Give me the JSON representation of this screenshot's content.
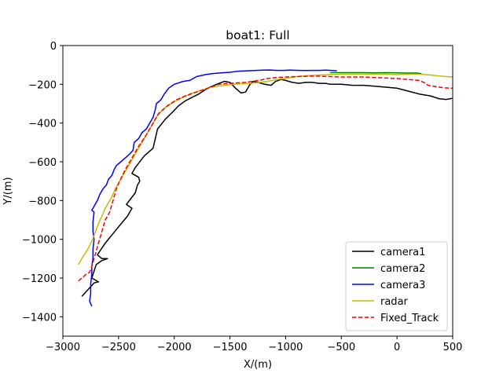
{
  "chart_data": {
    "type": "line",
    "title": "boat1: Full",
    "xlabel": "X/(m)",
    "ylabel": "Y/(m)",
    "xlim": [
      -3000,
      500
    ],
    "ylim": [
      -1500,
      0
    ],
    "xticks": [
      -3000,
      -2500,
      -2000,
      -1500,
      -1000,
      -500,
      0,
      500
    ],
    "yticks": [
      0,
      -200,
      -400,
      -600,
      -800,
      -1000,
      -1200,
      -1400
    ],
    "xtick_labels": [
      "−3000",
      "−2500",
      "−2000",
      "−1500",
      "−1000",
      "−500",
      "0",
      "500"
    ],
    "ytick_labels": [
      "0",
      "−200",
      "−400",
      "−600",
      "−800",
      "−1000",
      "−1200",
      "−1400"
    ],
    "grid": false,
    "legend_position": "lower-right",
    "series": [
      {
        "name": "camera1",
        "color": "#000000",
        "dash": "solid",
        "points": [
          [
            -2830,
            -1295
          ],
          [
            -2720,
            -1225
          ],
          [
            -2680,
            -1220
          ],
          [
            -2740,
            -1200
          ],
          [
            -2700,
            -1130
          ],
          [
            -2650,
            -1110
          ],
          [
            -2600,
            -1100
          ],
          [
            -2650,
            -1100
          ],
          [
            -2690,
            -1080
          ],
          [
            -2620,
            -1020
          ],
          [
            -2520,
            -950
          ],
          [
            -2420,
            -880
          ],
          [
            -2380,
            -840
          ],
          [
            -2430,
            -820
          ],
          [
            -2350,
            -760
          ],
          [
            -2330,
            -720
          ],
          [
            -2310,
            -700
          ],
          [
            -2320,
            -680
          ],
          [
            -2380,
            -660
          ],
          [
            -2350,
            -630
          ],
          [
            -2270,
            -570
          ],
          [
            -2190,
            -530
          ],
          [
            -2170,
            -480
          ],
          [
            -2150,
            -430
          ],
          [
            -2080,
            -380
          ],
          [
            -2010,
            -340
          ],
          [
            -1960,
            -310
          ],
          [
            -1900,
            -285
          ],
          [
            -1780,
            -250
          ],
          [
            -1700,
            -220
          ],
          [
            -1620,
            -200
          ],
          [
            -1550,
            -185
          ],
          [
            -1500,
            -190
          ],
          [
            -1450,
            -220
          ],
          [
            -1400,
            -245
          ],
          [
            -1360,
            -240
          ],
          [
            -1320,
            -200
          ],
          [
            -1290,
            -185
          ],
          [
            -1250,
            -190
          ],
          [
            -1190,
            -200
          ],
          [
            -1130,
            -205
          ],
          [
            -1090,
            -185
          ],
          [
            -1040,
            -175
          ],
          [
            -1000,
            -180
          ],
          [
            -940,
            -190
          ],
          [
            -880,
            -195
          ],
          [
            -820,
            -190
          ],
          [
            -760,
            -190
          ],
          [
            -700,
            -195
          ],
          [
            -640,
            -195
          ],
          [
            -600,
            -200
          ],
          [
            -500,
            -200
          ],
          [
            -400,
            -205
          ],
          [
            -300,
            -205
          ],
          [
            -200,
            -210
          ],
          [
            -100,
            -215
          ],
          [
            0,
            -220
          ],
          [
            100,
            -235
          ],
          [
            200,
            -250
          ],
          [
            300,
            -260
          ],
          [
            380,
            -275
          ],
          [
            440,
            -278
          ],
          [
            500,
            -272
          ]
        ]
      },
      {
        "name": "camera2",
        "color": "#008000",
        "dash": "solid",
        "points": [
          [
            -600,
            -140
          ],
          [
            -500,
            -140
          ],
          [
            -400,
            -140
          ],
          [
            -300,
            -140
          ],
          [
            -200,
            -141
          ],
          [
            -100,
            -140
          ],
          [
            0,
            -141
          ],
          [
            100,
            -142
          ],
          [
            180,
            -142
          ],
          [
            220,
            -145
          ]
        ]
      },
      {
        "name": "camera3",
        "color": "#0000ff",
        "dash": "solid",
        "points": [
          [
            -2740,
            -1345
          ],
          [
            -2760,
            -1320
          ],
          [
            -2750,
            -1280
          ],
          [
            -2750,
            -1230
          ],
          [
            -2740,
            -1180
          ],
          [
            -2740,
            -1140
          ],
          [
            -2730,
            -1100
          ],
          [
            -2730,
            -1050
          ],
          [
            -2720,
            -1000
          ],
          [
            -2730,
            -960
          ],
          [
            -2730,
            -910
          ],
          [
            -2720,
            -860
          ],
          [
            -2740,
            -850
          ],
          [
            -2720,
            -830
          ],
          [
            -2690,
            -800
          ],
          [
            -2670,
            -770
          ],
          [
            -2640,
            -740
          ],
          [
            -2610,
            -720
          ],
          [
            -2590,
            -690
          ],
          [
            -2560,
            -670
          ],
          [
            -2540,
            -640
          ],
          [
            -2520,
            -620
          ],
          [
            -2480,
            -600
          ],
          [
            -2440,
            -580
          ],
          [
            -2400,
            -560
          ],
          [
            -2370,
            -540
          ],
          [
            -2360,
            -500
          ],
          [
            -2320,
            -480
          ],
          [
            -2290,
            -450
          ],
          [
            -2250,
            -430
          ],
          [
            -2220,
            -400
          ],
          [
            -2190,
            -370
          ],
          [
            -2170,
            -330
          ],
          [
            -2160,
            -300
          ],
          [
            -2120,
            -280
          ],
          [
            -2090,
            -250
          ],
          [
            -2050,
            -220
          ],
          [
            -2000,
            -200
          ],
          [
            -1920,
            -185
          ],
          [
            -1860,
            -180
          ],
          [
            -1800,
            -160
          ],
          [
            -1720,
            -150
          ],
          [
            -1660,
            -145
          ],
          [
            -1600,
            -142
          ],
          [
            -1500,
            -138
          ],
          [
            -1420,
            -132
          ],
          [
            -1340,
            -130
          ],
          [
            -1260,
            -128
          ],
          [
            -1200,
            -127
          ],
          [
            -1140,
            -126
          ],
          [
            -1080,
            -128
          ],
          [
            -1020,
            -128
          ],
          [
            -960,
            -127
          ],
          [
            -880,
            -128
          ],
          [
            -820,
            -129
          ],
          [
            -760,
            -128
          ],
          [
            -700,
            -128
          ],
          [
            -640,
            -127
          ],
          [
            -580,
            -129
          ],
          [
            -540,
            -130
          ]
        ]
      },
      {
        "name": "radar",
        "color": "#bfbf00",
        "dash": "solid",
        "points": [
          [
            -2860,
            -1130
          ],
          [
            -2820,
            -1090
          ],
          [
            -2780,
            -1055
          ],
          [
            -2740,
            -1010
          ],
          [
            -2720,
            -980
          ],
          [
            -2680,
            -920
          ],
          [
            -2650,
            -880
          ],
          [
            -2620,
            -840
          ],
          [
            -2600,
            -820
          ],
          [
            -2560,
            -780
          ],
          [
            -2530,
            -740
          ],
          [
            -2480,
            -690
          ],
          [
            -2440,
            -650
          ],
          [
            -2380,
            -590
          ],
          [
            -2330,
            -540
          ],
          [
            -2260,
            -470
          ],
          [
            -2200,
            -410
          ],
          [
            -2150,
            -360
          ],
          [
            -2080,
            -320
          ],
          [
            -2000,
            -290
          ],
          [
            -1930,
            -270
          ],
          [
            -1860,
            -250
          ],
          [
            -1780,
            -235
          ],
          [
            -1700,
            -220
          ],
          [
            -1620,
            -210
          ],
          [
            -1540,
            -205
          ],
          [
            -1470,
            -200
          ],
          [
            -1390,
            -198
          ],
          [
            -1320,
            -195
          ],
          [
            -1230,
            -190
          ],
          [
            -1160,
            -185
          ],
          [
            -1080,
            -175
          ],
          [
            -1000,
            -170
          ],
          [
            -900,
            -160
          ],
          [
            -800,
            -155
          ],
          [
            -700,
            -152
          ],
          [
            -600,
            -150
          ],
          [
            -500,
            -148
          ],
          [
            -400,
            -148
          ],
          [
            -300,
            -148
          ],
          [
            -200,
            -148
          ],
          [
            -100,
            -148
          ],
          [
            0,
            -150
          ],
          [
            100,
            -148
          ],
          [
            200,
            -148
          ],
          [
            300,
            -152
          ],
          [
            400,
            -158
          ],
          [
            450,
            -160
          ],
          [
            500,
            -162
          ]
        ]
      },
      {
        "name": "Fixed_Track",
        "color": "#ff0000",
        "dash": "dashed",
        "points": [
          [
            -2860,
            -1215
          ],
          [
            -2820,
            -1195
          ],
          [
            -2790,
            -1180
          ],
          [
            -2760,
            -1170
          ],
          [
            -2740,
            -1140
          ],
          [
            -2720,
            -1100
          ],
          [
            -2700,
            -1060
          ],
          [
            -2680,
            -1020
          ],
          [
            -2660,
            -980
          ],
          [
            -2640,
            -940
          ],
          [
            -2620,
            -900
          ],
          [
            -2600,
            -880
          ],
          [
            -2580,
            -860
          ],
          [
            -2560,
            -820
          ],
          [
            -2540,
            -780
          ],
          [
            -2520,
            -740
          ],
          [
            -2490,
            -700
          ],
          [
            -2440,
            -640
          ],
          [
            -2380,
            -580
          ],
          [
            -2320,
            -520
          ],
          [
            -2250,
            -460
          ],
          [
            -2190,
            -400
          ],
          [
            -2140,
            -350
          ],
          [
            -2060,
            -310
          ],
          [
            -1980,
            -280
          ],
          [
            -1900,
            -260
          ],
          [
            -1800,
            -240
          ],
          [
            -1700,
            -220
          ],
          [
            -1600,
            -200
          ],
          [
            -1500,
            -195
          ],
          [
            -1420,
            -192
          ],
          [
            -1360,
            -190
          ],
          [
            -1300,
            -185
          ],
          [
            -1240,
            -180
          ],
          [
            -1160,
            -170
          ],
          [
            -1080,
            -165
          ],
          [
            -1000,
            -162
          ],
          [
            -900,
            -160
          ],
          [
            -800,
            -158
          ],
          [
            -700,
            -158
          ],
          [
            -600,
            -160
          ],
          [
            -500,
            -162
          ],
          [
            -400,
            -162
          ],
          [
            -300,
            -162
          ],
          [
            -200,
            -165
          ],
          [
            -100,
            -168
          ],
          [
            0,
            -170
          ],
          [
            100,
            -175
          ],
          [
            200,
            -180
          ],
          [
            240,
            -190
          ],
          [
            280,
            -205
          ],
          [
            350,
            -212
          ],
          [
            420,
            -218
          ],
          [
            500,
            -220
          ]
        ]
      }
    ]
  }
}
